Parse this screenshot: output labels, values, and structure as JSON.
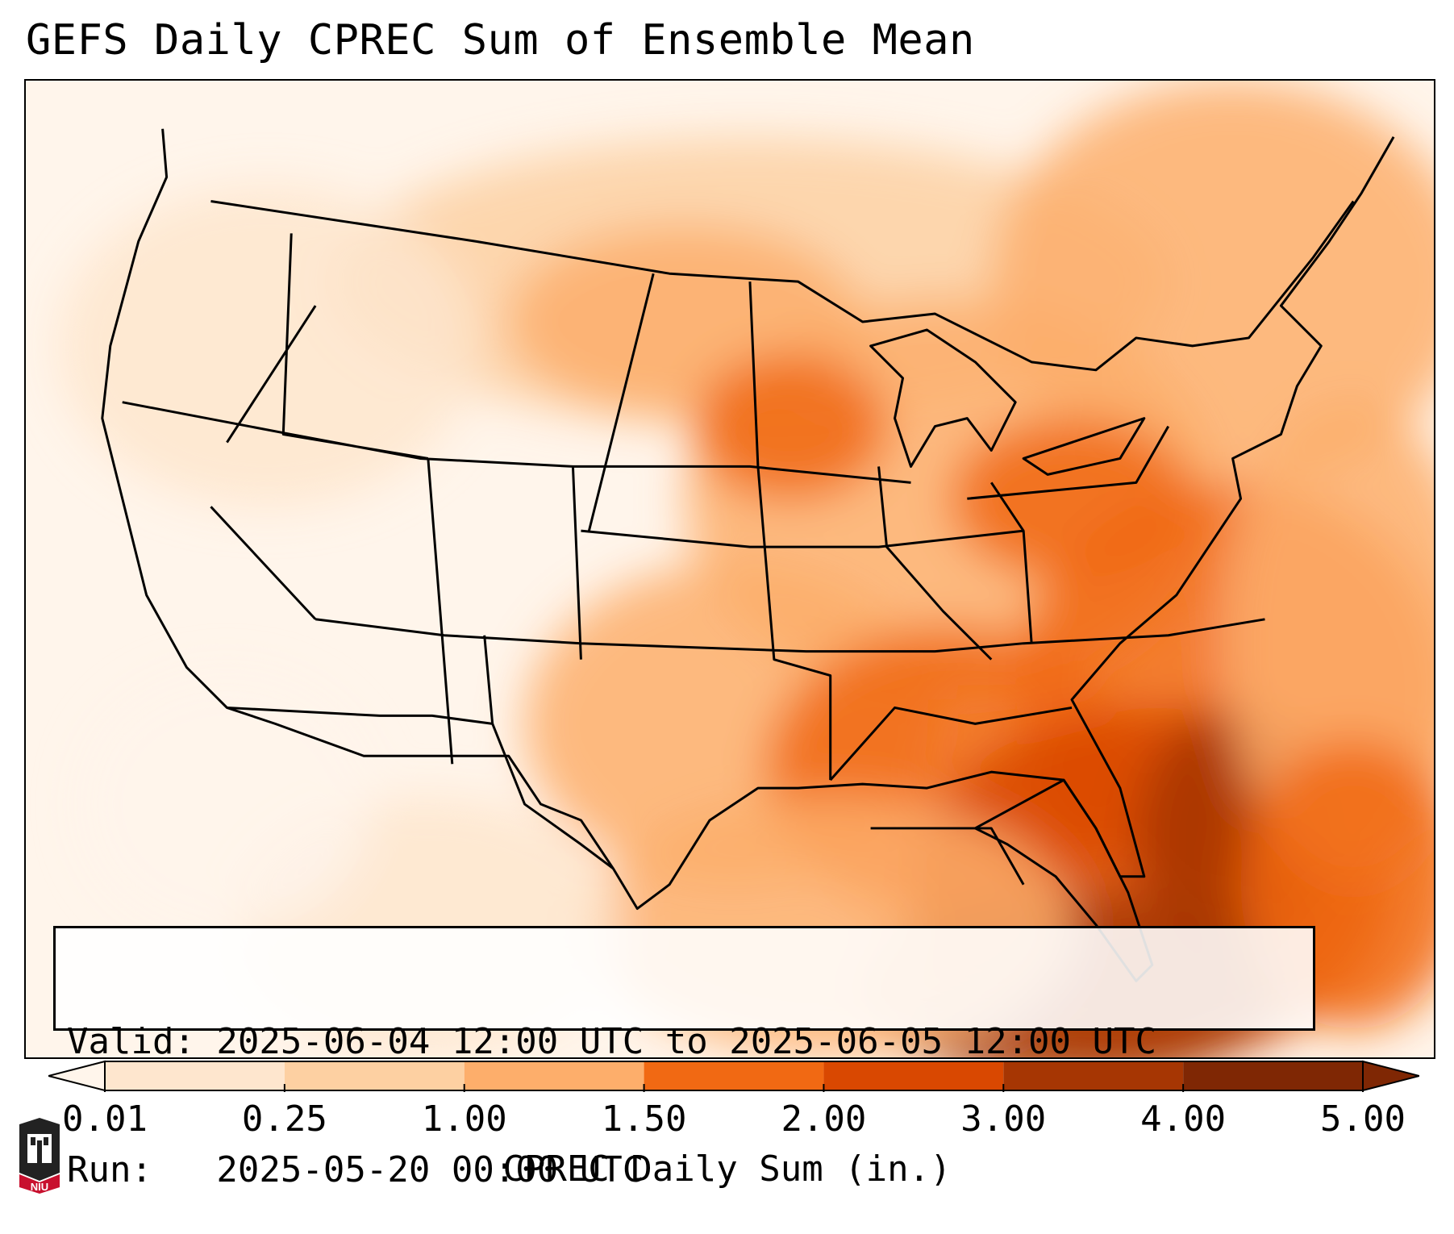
{
  "title": "GEFS Daily CPREC Sum of Ensemble Mean",
  "info": {
    "valid_line": "Valid: 2025-06-04 12:00 UTC to 2025-06-05 12:00 UTC",
    "run_line": "Run:   2025-05-20 00:00 UTC"
  },
  "colorbar": {
    "label": "CPREC Daily Sum (in.)",
    "ticks": [
      "0.01",
      "0.25",
      "1.00",
      "1.50",
      "2.00",
      "3.00",
      "4.00",
      "5.00"
    ],
    "colors": [
      "#fff5eb",
      "#fee6ce",
      "#fdd0a2",
      "#fdae6b",
      "#f16913",
      "#d94801",
      "#a63603",
      "#7f2704"
    ],
    "extend": "both"
  },
  "map": {
    "projection": "lambert-conformal",
    "region": "CONUS",
    "field": "convective precipitation daily sum"
  },
  "logo": {
    "text": "NIU",
    "accent_color": "#c8102e"
  }
}
